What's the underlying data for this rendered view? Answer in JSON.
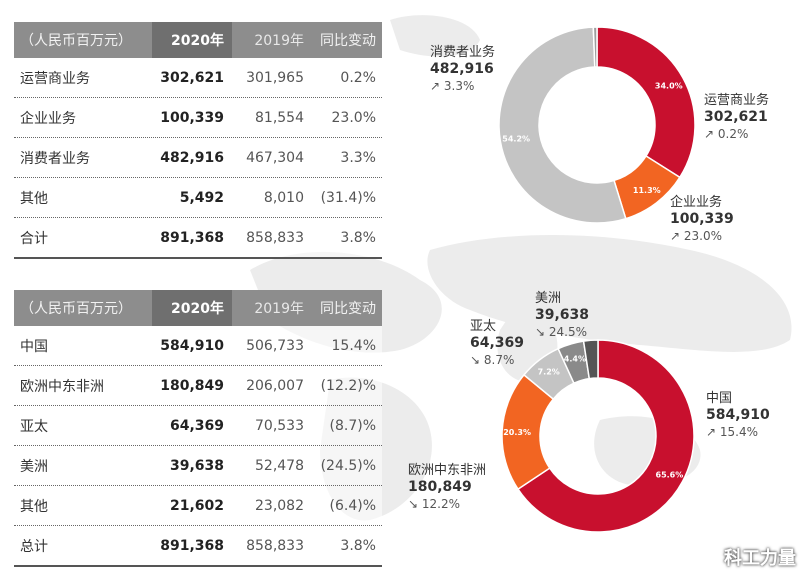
{
  "table1": {
    "headers": [
      "（人民币百万元）",
      "2020年",
      "2019年",
      "同比变动"
    ],
    "rows": [
      [
        "运营商业务",
        "302,621",
        "301,965",
        "0.2%"
      ],
      [
        "企业业务",
        "100,339",
        "81,554",
        "23.0%"
      ],
      [
        "消费者业务",
        "482,916",
        "467,304",
        "3.3%"
      ],
      [
        "其他",
        "5,492",
        "8,010",
        "(31.4)%"
      ],
      [
        "合计",
        "891,368",
        "858,833",
        "3.8%"
      ]
    ]
  },
  "table2": {
    "headers": [
      "（人民币百万元）",
      "2020年",
      "2019年",
      "同比变动"
    ],
    "rows": [
      [
        "中国",
        "584,910",
        "506,733",
        "15.4%"
      ],
      [
        "欧洲中东非洲",
        "180,849",
        "206,007",
        "(12.2)%"
      ],
      [
        "亚太",
        "64,369",
        "70,533",
        "(8.7)%"
      ],
      [
        "美洲",
        "39,638",
        "52,478",
        "(24.5)%"
      ],
      [
        "其他",
        "21,602",
        "23,082",
        "(6.4)%"
      ],
      [
        "总计",
        "891,368",
        "858,833",
        "3.8%"
      ]
    ]
  },
  "chart_data": [
    {
      "type": "pie",
      "title": "",
      "slices": [
        {
          "name": "运营商业务",
          "value": 34.0,
          "label": "34.0%",
          "amount": "302,621",
          "change": "0.2%",
          "trend": "up",
          "color": "#c8102e"
        },
        {
          "name": "企业业务",
          "value": 11.3,
          "label": "11.3%",
          "amount": "100,339",
          "change": "23.0%",
          "trend": "up",
          "color": "#f26522"
        },
        {
          "name": "消费者业务",
          "value": 54.2,
          "label": "54.2%",
          "amount": "482,916",
          "change": "3.3%",
          "trend": "up",
          "color": "#c4c4c4"
        },
        {
          "name": "其他",
          "value": 0.6,
          "label": "",
          "color": "#9e9e9e"
        }
      ]
    },
    {
      "type": "pie",
      "title": "",
      "slices": [
        {
          "name": "中国",
          "value": 65.6,
          "label": "65.6%",
          "amount": "584,910",
          "change": "15.4%",
          "trend": "up",
          "color": "#c8102e"
        },
        {
          "name": "欧洲中东非洲",
          "value": 20.3,
          "label": "20.3%",
          "amount": "180,849",
          "change": "12.2%",
          "trend": "down",
          "color": "#f26522"
        },
        {
          "name": "亚太",
          "value": 7.2,
          "label": "7.2%",
          "amount": "64,369",
          "change": "8.7%",
          "trend": "down",
          "color": "#c4c4c4"
        },
        {
          "name": "美洲",
          "value": 4.4,
          "label": "4.4%",
          "amount": "39,638",
          "change": "24.5%",
          "trend": "down",
          "color": "#8a8a8a"
        },
        {
          "name": "其他",
          "value": 2.4,
          "label": "",
          "color": "#555555"
        }
      ]
    }
  ],
  "arrows": {
    "up": "↗",
    "down": "↘"
  },
  "watermark": {
    "text": "科工力量",
    "icon": "wechat-icon"
  }
}
